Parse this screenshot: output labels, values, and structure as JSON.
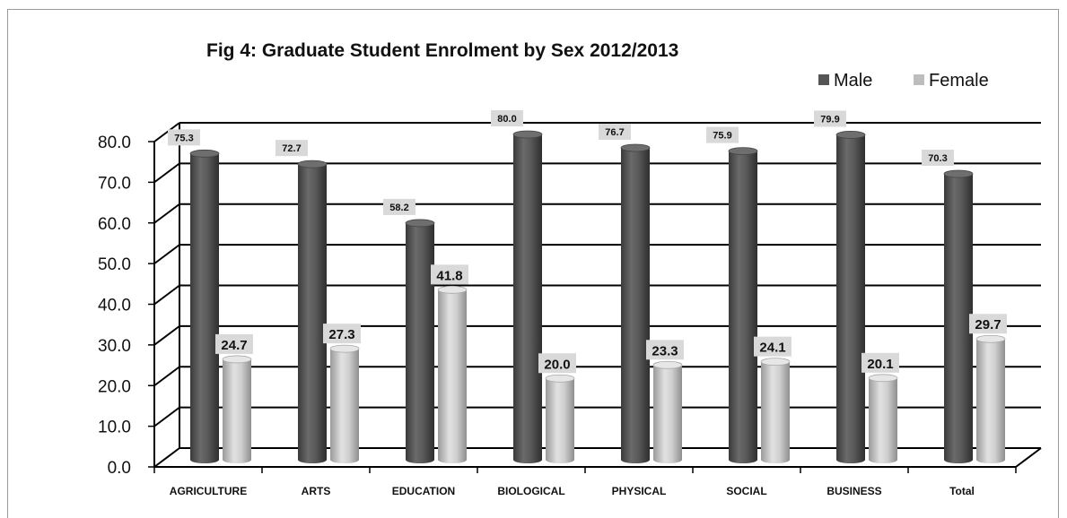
{
  "chart_data": {
    "type": "bar",
    "title": "Fig 4: Graduate Student Enrolment by Sex 2012/2013",
    "categories": [
      "AGRICULTURE",
      "ARTS",
      "EDUCATION",
      "BIOLOGICAL",
      "PHYSICAL",
      "SOCIAL",
      "BUSINESS",
      "Total"
    ],
    "series": [
      {
        "name": "Male",
        "color": "#555555",
        "values": [
          75.3,
          72.7,
          58.2,
          80.0,
          76.7,
          75.9,
          79.9,
          70.3
        ]
      },
      {
        "name": "Female",
        "color": "#bdbdbd",
        "values": [
          24.7,
          27.3,
          41.8,
          20.0,
          23.3,
          24.1,
          20.1,
          29.7
        ]
      }
    ],
    "ylim": [
      0,
      80
    ],
    "yticks": [
      "0.0",
      "10.0",
      "20.0",
      "30.0",
      "40.0",
      "50.0",
      "60.0",
      "70.0",
      "80.0"
    ],
    "grid": true,
    "legend": "top-right",
    "style": "3d-cylinder"
  }
}
